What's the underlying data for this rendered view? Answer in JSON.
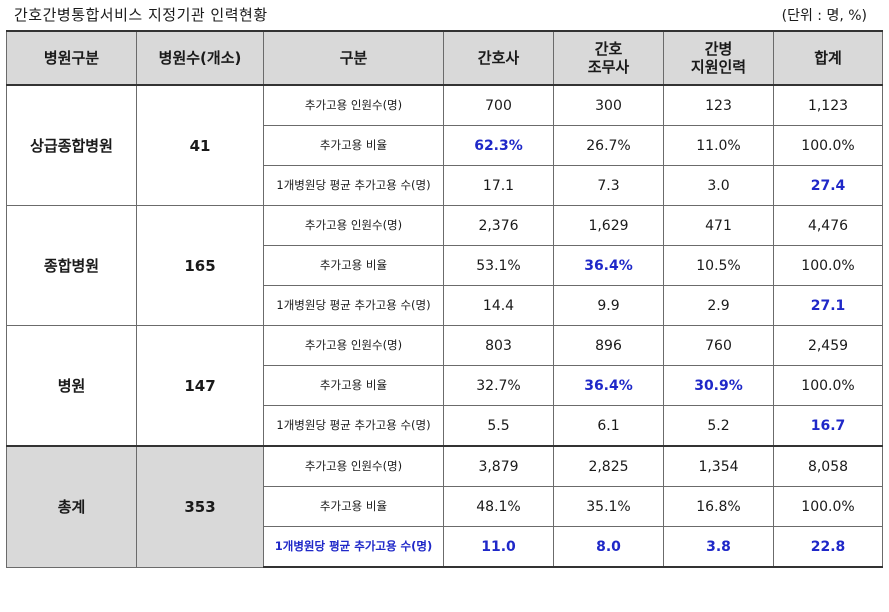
{
  "title": "간호간병통합서비스 지정기관 인력현황",
  "unit": "(단위 : 명, %)",
  "headers": {
    "group": "병원구분",
    "count": "병원수(개소)",
    "category": "구분",
    "nurse": "간호사",
    "aide_line1": "간호",
    "aide_line2": "조무사",
    "support_line1": "간병",
    "support_line2": "지원인력",
    "total": "합계"
  },
  "categories": {
    "added_hires": "추가고용  인원수(명)",
    "added_ratio": "추가고용 비율",
    "avg_per_hospital": "1개병원당 평균 추가고용 수(명)"
  },
  "groups": [
    {
      "name": "상급종합병원",
      "count": "41",
      "rows": [
        {
          "nurse": "700",
          "aide": "300",
          "support": "123",
          "total": "1,123"
        },
        {
          "nurse": "62.3%",
          "aide": "26.7%",
          "support": "11.0%",
          "total": "100.0%"
        },
        {
          "nurse": "17.1",
          "aide": "7.3",
          "support": "3.0",
          "total": "27.4"
        }
      ]
    },
    {
      "name": "종합병원",
      "count": "165",
      "rows": [
        {
          "nurse": "2,376",
          "aide": "1,629",
          "support": "471",
          "total": "4,476"
        },
        {
          "nurse": "53.1%",
          "aide": "36.4%",
          "support": "10.5%",
          "total": "100.0%"
        },
        {
          "nurse": "14.4",
          "aide": "9.9",
          "support": "2.9",
          "total": "27.1"
        }
      ]
    },
    {
      "name": "병원",
      "count": "147",
      "rows": [
        {
          "nurse": "803",
          "aide": "896",
          "support": "760",
          "total": "2,459"
        },
        {
          "nurse": "32.7%",
          "aide": "36.4%",
          "support": "30.9%",
          "total": "100.0%"
        },
        {
          "nurse": "5.5",
          "aide": "6.1",
          "support": "5.2",
          "total": "16.7"
        }
      ]
    },
    {
      "name": "총계",
      "count": "353",
      "rows": [
        {
          "nurse": "3,879",
          "aide": "2,825",
          "support": "1,354",
          "total": "8,058"
        },
        {
          "nurse": "48.1%",
          "aide": "35.1%",
          "support": "16.8%",
          "total": "100.0%"
        },
        {
          "nurse": "11.0",
          "aide": "8.0",
          "support": "3.8",
          "total": "22.8"
        }
      ]
    }
  ],
  "highlight_color": "#1f28c8",
  "header_bg": "#d9d9d9"
}
